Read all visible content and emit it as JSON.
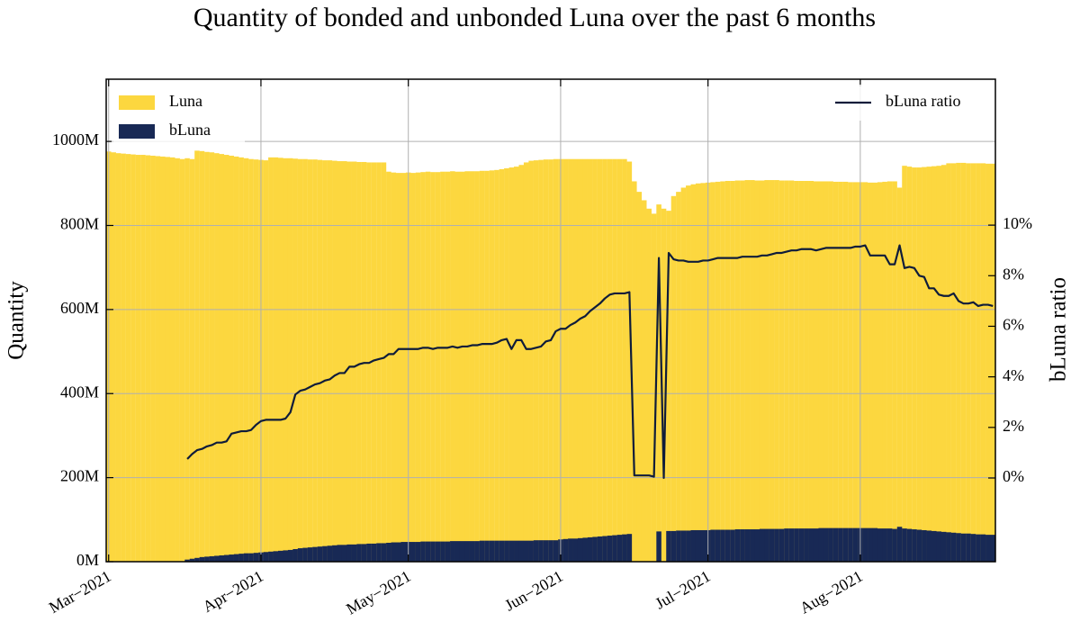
{
  "chart_data": {
    "type": "bar",
    "title": "Quantity of bonded and unbonded Luna over the past 6 months",
    "ylabel": "Quantity",
    "y2label": "bLuna ratio",
    "categories": [
      "Mar−2021",
      null,
      null,
      null,
      null,
      null,
      null,
      null,
      null,
      null,
      null,
      null,
      null,
      null,
      null,
      null,
      null,
      null,
      null,
      null,
      null,
      null,
      null,
      null,
      null,
      null,
      null,
      null,
      null,
      null,
      null,
      "Apr−2021",
      null,
      null,
      null,
      null,
      null,
      null,
      null,
      null,
      null,
      null,
      null,
      null,
      null,
      null,
      null,
      null,
      null,
      null,
      null,
      null,
      null,
      null,
      null,
      null,
      null,
      null,
      null,
      null,
      null,
      "May−2021",
      null,
      null,
      null,
      null,
      null,
      null,
      null,
      null,
      null,
      null,
      null,
      null,
      null,
      null,
      null,
      null,
      null,
      null,
      null,
      null,
      null,
      null,
      null,
      null,
      null,
      null,
      null,
      null,
      null,
      null,
      "Jun−2021",
      null,
      null,
      null,
      null,
      null,
      null,
      null,
      null,
      null,
      null,
      null,
      null,
      null,
      null,
      null,
      null,
      null,
      null,
      null,
      null,
      null,
      null,
      null,
      null,
      null,
      null,
      null,
      null,
      null,
      "Jul−2021",
      null,
      null,
      null,
      null,
      null,
      null,
      null,
      null,
      null,
      null,
      null,
      null,
      null,
      null,
      null,
      null,
      null,
      null,
      null,
      null,
      null,
      null,
      null,
      null,
      null,
      null,
      null,
      null,
      null,
      null,
      "Aug−2021",
      null,
      null,
      null,
      null,
      null,
      null,
      null,
      null,
      null,
      null,
      null,
      null,
      null,
      null,
      null,
      null,
      null,
      null,
      null,
      null,
      null,
      null,
      null,
      null,
      null,
      null,
      null
    ],
    "series": [
      {
        "name": "Luna",
        "type": "bar",
        "color": "#fcd73f",
        "values": [
          976,
          974,
          972,
          971,
          970,
          969,
          968,
          968,
          967,
          966,
          965,
          964,
          963,
          962,
          960,
          958,
          960,
          958,
          978,
          977,
          975,
          974,
          972,
          970,
          968,
          966,
          964,
          962,
          960,
          958,
          957,
          956,
          955,
          962,
          962,
          961,
          960,
          960,
          959,
          958,
          958,
          957,
          957,
          956,
          955,
          955,
          954,
          953,
          953,
          952,
          952,
          951,
          951,
          950,
          950,
          950,
          950,
          928,
          926,
          925,
          925,
          926,
          925,
          926,
          927,
          928,
          927,
          927,
          928,
          928,
          929,
          928,
          928,
          929,
          929,
          929,
          930,
          930,
          931,
          932,
          934,
          936,
          938,
          940,
          944,
          950,
          954,
          955,
          956,
          957,
          957,
          958,
          958,
          958,
          958,
          958,
          958,
          958,
          958,
          958,
          958,
          958,
          958,
          958,
          958,
          958,
          952,
          905,
          880,
          860,
          840,
          828,
          850,
          840,
          835,
          870,
          880,
          890,
          895,
          898,
          900,
          901,
          902,
          903,
          904,
          905,
          906,
          906,
          907,
          907,
          908,
          908,
          907,
          907,
          908,
          908,
          908,
          907,
          907,
          907,
          906,
          906,
          906,
          906,
          905,
          905,
          905,
          905,
          904,
          904,
          904,
          903,
          903,
          903,
          903,
          902,
          902,
          903,
          904,
          905,
          905,
          890,
          942,
          940,
          938,
          938,
          939,
          940,
          941,
          942,
          944,
          948,
          948,
          949,
          949,
          948,
          948,
          948,
          948,
          947,
          947
        ]
      },
      {
        "name": "bLuna",
        "type": "bar",
        "color": "#182955",
        "values": [
          0,
          0,
          0,
          0,
          0,
          0,
          0,
          0,
          0,
          0,
          0,
          0,
          0,
          0,
          0,
          0,
          5,
          7,
          9,
          11,
          12,
          13,
          14,
          15,
          16,
          17,
          18,
          19,
          20,
          20,
          21,
          22,
          23,
          24,
          25,
          26,
          27,
          28,
          30,
          32,
          33,
          34,
          35,
          36,
          37,
          38,
          39,
          40,
          40,
          41,
          41,
          42,
          42,
          43,
          43,
          44,
          44,
          45,
          46,
          46,
          47,
          47,
          47,
          47,
          48,
          48,
          48,
          48,
          48,
          48,
          49,
          49,
          49,
          49,
          49,
          49,
          50,
          50,
          50,
          50,
          50,
          50,
          50,
          50,
          50,
          50,
          50,
          51,
          51,
          51,
          51,
          51,
          53,
          54,
          55,
          55,
          56,
          57,
          58,
          59,
          60,
          61,
          62,
          63,
          64,
          65,
          66,
          0,
          0,
          0,
          0,
          0,
          72,
          0,
          73,
          73,
          74,
          74,
          74,
          75,
          75,
          75,
          75,
          76,
          76,
          76,
          76,
          76,
          77,
          77,
          77,
          77,
          77,
          78,
          78,
          78,
          78,
          78,
          79,
          79,
          79,
          79,
          79,
          79,
          79,
          80,
          80,
          80,
          80,
          80,
          80,
          80,
          80,
          80,
          80,
          80,
          80,
          79,
          79,
          79,
          78,
          83,
          79,
          78,
          77,
          76,
          75,
          74,
          73,
          72,
          71,
          70,
          69,
          68,
          67,
          67,
          66,
          65,
          65,
          64,
          64
        ]
      },
      {
        "name": "bLuna ratio",
        "type": "line",
        "axis": "y2",
        "color": "#0f1c3a",
        "values": [
          null,
          null,
          null,
          null,
          null,
          null,
          null,
          null,
          null,
          null,
          null,
          null,
          null,
          null,
          null,
          null,
          0.75,
          0.95,
          1.1,
          1.15,
          1.25,
          1.3,
          1.4,
          1.4,
          1.45,
          1.75,
          1.8,
          1.85,
          1.85,
          1.9,
          2.1,
          2.25,
          2.3,
          2.3,
          2.3,
          2.3,
          2.35,
          2.6,
          3.3,
          3.45,
          3.5,
          3.6,
          3.7,
          3.75,
          3.85,
          3.9,
          4.05,
          4.15,
          4.15,
          4.4,
          4.4,
          4.5,
          4.55,
          4.55,
          4.65,
          4.7,
          4.75,
          4.9,
          4.9,
          5.1,
          5.1,
          5.1,
          5.1,
          5.1,
          5.15,
          5.15,
          5.1,
          5.15,
          5.15,
          5.15,
          5.2,
          5.15,
          5.2,
          5.2,
          5.25,
          5.25,
          5.3,
          5.3,
          5.3,
          5.35,
          5.45,
          5.5,
          5.1,
          5.45,
          5.45,
          5.1,
          5.1,
          5.15,
          5.2,
          5.4,
          5.45,
          5.8,
          5.9,
          5.9,
          6.05,
          6.15,
          6.3,
          6.4,
          6.6,
          6.75,
          6.9,
          7.1,
          7.25,
          7.3,
          7.3,
          7.3,
          7.35,
          0.1,
          0.1,
          0.1,
          0.1,
          0.05,
          8.7,
          0,
          8.9,
          8.65,
          8.6,
          8.6,
          8.55,
          8.55,
          8.55,
          8.6,
          8.6,
          8.65,
          8.7,
          8.7,
          8.7,
          8.7,
          8.7,
          8.75,
          8.75,
          8.75,
          8.75,
          8.8,
          8.8,
          8.85,
          8.9,
          8.9,
          8.95,
          9.0,
          9.0,
          9.05,
          9.05,
          9.05,
          9.0,
          9.05,
          9.1,
          9.1,
          9.1,
          9.1,
          9.1,
          9.1,
          9.15,
          9.15,
          9.2,
          8.8,
          8.8,
          8.8,
          8.8,
          8.45,
          8.45,
          9.2,
          8.3,
          8.35,
          8.3,
          8.0,
          7.95,
          7.5,
          7.5,
          7.25,
          7.2,
          7.2,
          7.3,
          7.0,
          6.9,
          6.9,
          6.95,
          6.8,
          6.85,
          6.85,
          6.8
        ]
      }
    ],
    "ylim": [
      0,
      1148
    ],
    "yticks": [
      {
        "value": 0,
        "label": "0M"
      },
      {
        "value": 200,
        "label": "200M"
      },
      {
        "value": 400,
        "label": "400M"
      },
      {
        "value": 600,
        "label": "600M"
      },
      {
        "value": 800,
        "label": "800M"
      },
      {
        "value": 1000,
        "label": "1000M"
      }
    ],
    "y2lim": [
      -3.31,
      15.77
    ],
    "y2ticks": [
      {
        "value": 0,
        "label": "0%"
      },
      {
        "value": 2,
        "label": "2%"
      },
      {
        "value": 4,
        "label": "4%"
      },
      {
        "value": 6,
        "label": "6%"
      },
      {
        "value": 8,
        "label": "8%"
      },
      {
        "value": 10,
        "label": "10%"
      }
    ],
    "grid": true,
    "legend": "upper left",
    "y2_legend": "upper right"
  }
}
